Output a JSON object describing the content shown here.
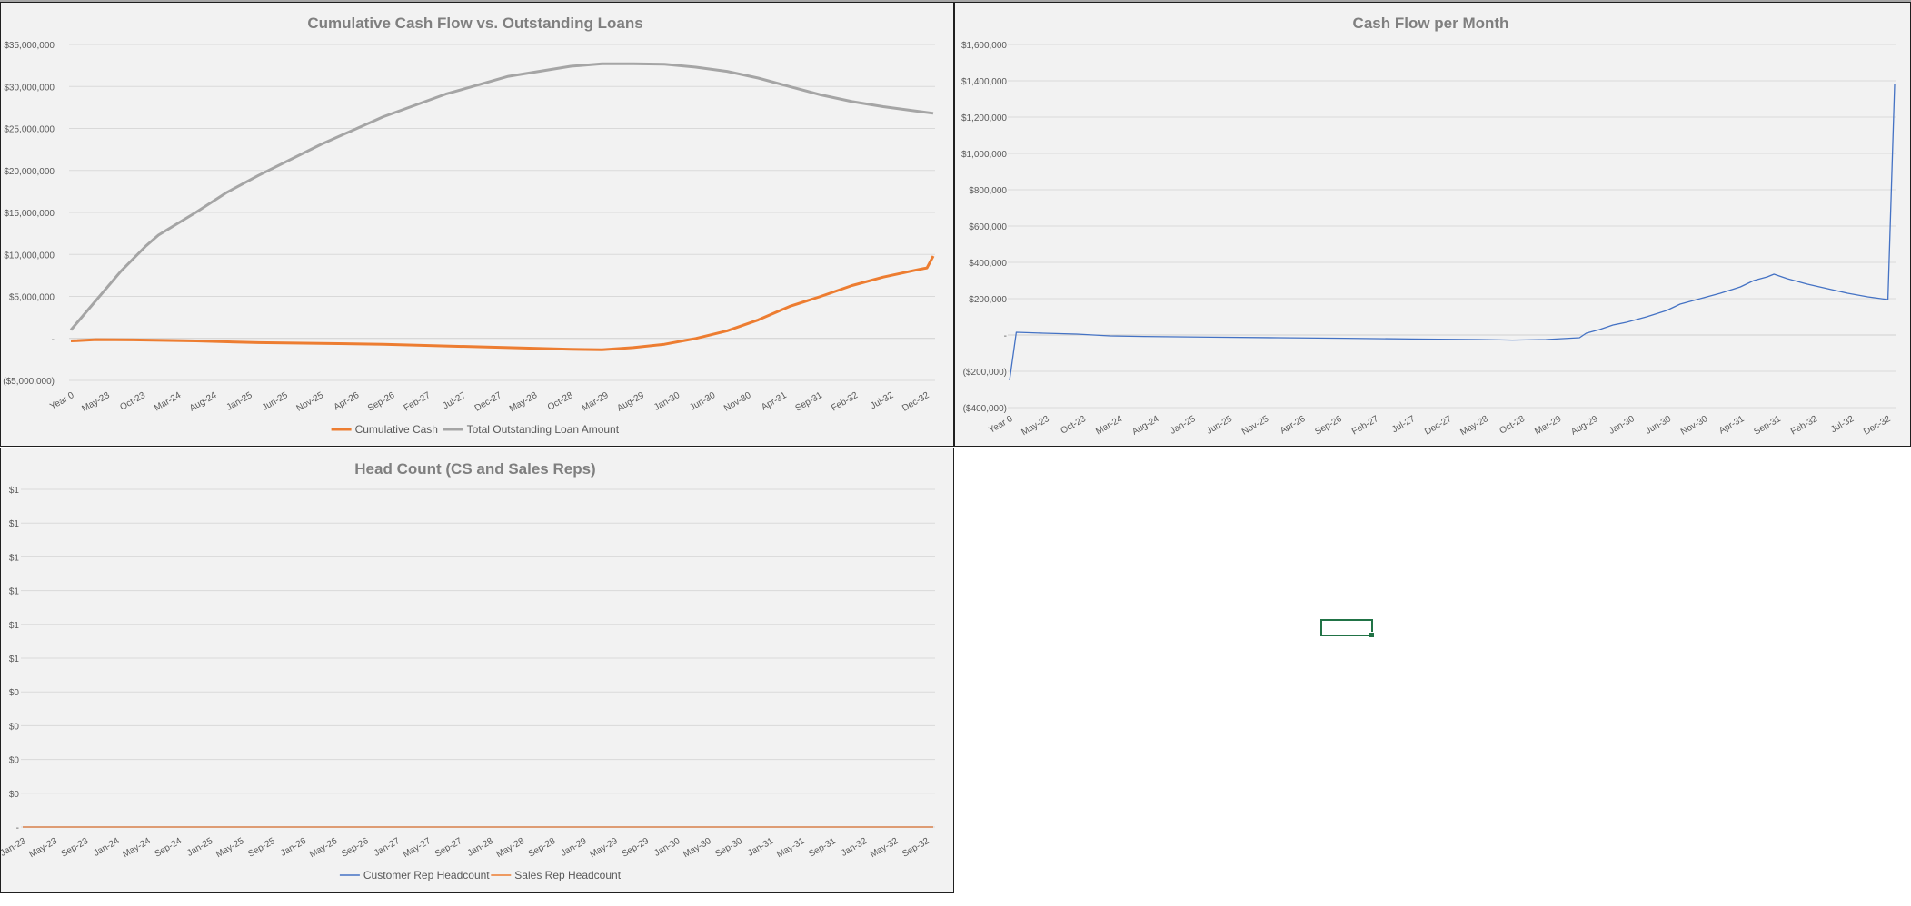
{
  "colors": {
    "orange": "#ed7d31",
    "gray": "#a5a5a5",
    "blue": "#4472c4",
    "title": "#7f7f7f",
    "axis": "#595959",
    "grid": "#d9d9d9"
  },
  "chart_data": [
    {
      "type": "line",
      "title": "Cumulative Cash Flow vs. Outstanding Loans",
      "ylim": [
        -5000000,
        35000000
      ],
      "y_ticks": [
        -5000000,
        0,
        5000000,
        10000000,
        15000000,
        20000000,
        25000000,
        30000000,
        35000000
      ],
      "y_tick_labels": [
        "($5,000,000)",
        "-",
        "$5,000,000",
        "$10,000,000",
        "$15,000,000",
        "$20,000,000",
        "$25,000,000",
        "$30,000,000",
        "$35,000,000"
      ],
      "x_count": 122,
      "x_tick_labels": [
        "Year 0",
        "May-23",
        "Oct-23",
        "Mar-24",
        "Aug-24",
        "Jan-25",
        "Jun-25",
        "Nov-25",
        "Apr-26",
        "Sep-26",
        "Feb-27",
        "Jul-27",
        "Dec-27",
        "May-28",
        "Oct-28",
        "Mar-29",
        "Aug-29",
        "Jan-30",
        "Jun-30",
        "Nov-30",
        "Apr-31",
        "Sep-31",
        "Feb-32",
        "Jul-32",
        "Dec-32"
      ],
      "legend": "bottom",
      "series": [
        {
          "name": "Cumulative Cash",
          "color": "#ed7d31",
          "points": [
            [
              0,
              -300000
            ],
            [
              1,
              -280000
            ],
            [
              4,
              -150000
            ],
            [
              10,
              -180000
            ],
            [
              20,
              -300000
            ],
            [
              30,
              -500000
            ],
            [
              40,
              -600000
            ],
            [
              50,
              -700000
            ],
            [
              60,
              -900000
            ],
            [
              70,
              -1100000
            ],
            [
              80,
              -1300000
            ],
            [
              85,
              -1350000
            ],
            [
              90,
              -1100000
            ],
            [
              95,
              -700000
            ],
            [
              100,
              0
            ],
            [
              105,
              900000
            ],
            [
              110,
              2200000
            ],
            [
              115,
              3800000
            ],
            [
              120,
              5000000
            ],
            [
              125,
              6300000
            ],
            [
              130,
              7300000
            ],
            [
              135,
              8100000
            ],
            [
              137,
              8400000
            ],
            [
              138,
              9800000
            ]
          ]
        },
        {
          "name": "Total Outstanding Loan Amount",
          "color": "#a5a5a5",
          "points": [
            [
              0,
              1000000
            ],
            [
              4,
              4500000
            ],
            [
              8,
              8000000
            ],
            [
              12,
              11000000
            ],
            [
              14,
              12300000
            ],
            [
              20,
              15000000
            ],
            [
              25,
              17400000
            ],
            [
              30,
              19400000
            ],
            [
              40,
              23100000
            ],
            [
              50,
              26400000
            ],
            [
              60,
              29100000
            ],
            [
              70,
              31200000
            ],
            [
              80,
              32400000
            ],
            [
              85,
              32700000
            ],
            [
              90,
              32700000
            ],
            [
              95,
              32650000
            ],
            [
              100,
              32300000
            ],
            [
              105,
              31800000
            ],
            [
              110,
              31000000
            ],
            [
              115,
              30000000
            ],
            [
              120,
              29000000
            ],
            [
              125,
              28200000
            ],
            [
              130,
              27600000
            ],
            [
              135,
              27100000
            ],
            [
              138,
              26800000
            ]
          ]
        }
      ]
    },
    {
      "type": "line",
      "title": "Cash Flow per Month",
      "ylim": [
        -400000,
        1600000
      ],
      "y_ticks": [
        -400000,
        -200000,
        0,
        200000,
        400000,
        600000,
        800000,
        1000000,
        1200000,
        1400000,
        1600000
      ],
      "y_tick_labels": [
        "($400,000)",
        "($200,000)",
        "-",
        "$200,000",
        "$400,000",
        "$600,000",
        "$800,000",
        "$1,000,000",
        "$1,200,000",
        "$1,400,000",
        "$1,600,000"
      ],
      "x_count": 122,
      "x_tick_labels": [
        "Year 0",
        "May-23",
        "Oct-23",
        "Mar-24",
        "Aug-24",
        "Jan-25",
        "Jun-25",
        "Nov-25",
        "Apr-26",
        "Sep-26",
        "Feb-27",
        "Jul-27",
        "Dec-27",
        "May-28",
        "Oct-28",
        "Mar-29",
        "Aug-29",
        "Jan-30",
        "Jun-30",
        "Nov-30",
        "Apr-31",
        "Sep-31",
        "Feb-32",
        "Jul-32",
        "Dec-32"
      ],
      "series": [
        {
          "name": "",
          "color": "#4472c4",
          "points": [
            [
              0,
              -250000
            ],
            [
              1,
              15000
            ],
            [
              5,
              10000
            ],
            [
              10,
              5000
            ],
            [
              15,
              -5000
            ],
            [
              20,
              -8000
            ],
            [
              30,
              -12000
            ],
            [
              40,
              -15000
            ],
            [
              50,
              -18000
            ],
            [
              60,
              -22000
            ],
            [
              70,
              -25000
            ],
            [
              75,
              -28000
            ],
            [
              80,
              -25000
            ],
            [
              85,
              -15000
            ],
            [
              86,
              10000
            ],
            [
              88,
              30000
            ],
            [
              90,
              55000
            ],
            [
              92,
              70000
            ],
            [
              95,
              100000
            ],
            [
              98,
              135000
            ],
            [
              100,
              170000
            ],
            [
              103,
              200000
            ],
            [
              106,
              230000
            ],
            [
              109,
              265000
            ],
            [
              111,
              300000
            ],
            [
              113,
              320000
            ],
            [
              114,
              335000
            ],
            [
              116,
              310000
            ],
            [
              119,
              280000
            ],
            [
              122,
              255000
            ],
            [
              125,
              230000
            ],
            [
              128,
              210000
            ],
            [
              130,
              200000
            ],
            [
              131,
              195000
            ],
            [
              132,
              1380000
            ]
          ]
        }
      ]
    },
    {
      "type": "line",
      "title": "Head Count (CS and Sales Reps)",
      "ylim": [
        0,
        10
      ],
      "y_ticks": [
        0,
        1,
        2,
        3,
        4,
        5,
        6,
        7,
        8,
        9,
        10
      ],
      "y_tick_labels": [
        "-",
        "$0",
        "$0",
        "$0",
        "$0",
        "$1",
        "$1",
        "$1",
        "$1",
        "$1",
        "$1"
      ],
      "x_count": 120,
      "x_tick_labels": [
        "Jan-23",
        "May-23",
        "Sep-23",
        "Jan-24",
        "May-24",
        "Sep-24",
        "Jan-25",
        "May-25",
        "Sep-25",
        "Jan-26",
        "May-26",
        "Sep-26",
        "Jan-27",
        "May-27",
        "Sep-27",
        "Jan-28",
        "May-28",
        "Sep-28",
        "Jan-29",
        "May-29",
        "Sep-29",
        "Jan-30",
        "May-30",
        "Sep-30",
        "Jan-31",
        "May-31",
        "Sep-31",
        "Jan-32",
        "May-32",
        "Sep-32"
      ],
      "legend": "bottom",
      "series": [
        {
          "name": "Customer Rep Headcount",
          "color": "#4472c4",
          "points": [
            [
              0,
              0
            ],
            [
              119,
              0
            ]
          ]
        },
        {
          "name": "Sales Rep Headcount",
          "color": "#ed7d31",
          "points": [
            [
              0,
              0
            ],
            [
              119,
              0
            ]
          ]
        }
      ]
    }
  ]
}
